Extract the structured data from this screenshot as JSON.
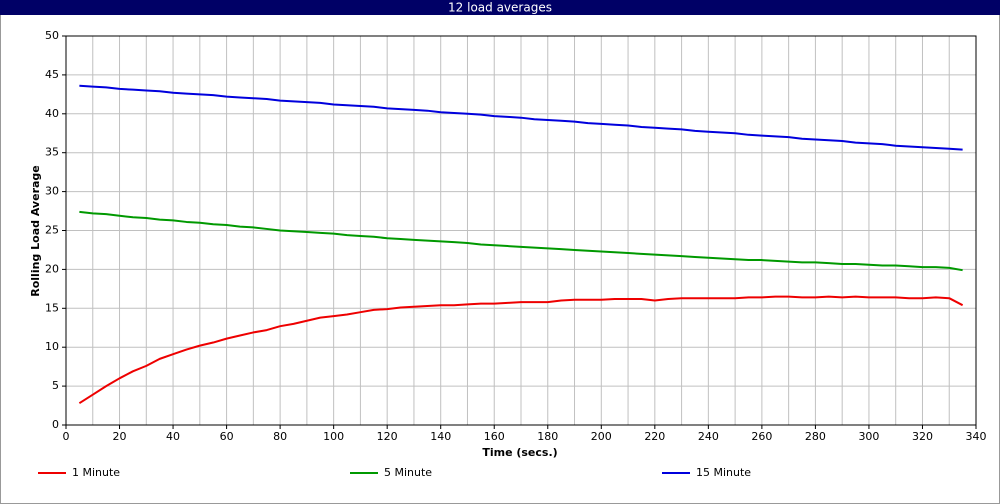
{
  "chart_data": {
    "type": "line",
    "title": "12 load averages",
    "x_label": "Time (secs.)",
    "y_label": "Rolling Load Average",
    "x": [
      5,
      10,
      15,
      20,
      25,
      30,
      35,
      40,
      45,
      50,
      55,
      60,
      65,
      70,
      75,
      80,
      85,
      90,
      95,
      100,
      105,
      110,
      115,
      120,
      125,
      130,
      135,
      140,
      145,
      150,
      155,
      160,
      165,
      170,
      175,
      180,
      185,
      190,
      195,
      200,
      205,
      210,
      215,
      220,
      225,
      230,
      235,
      240,
      245,
      250,
      255,
      260,
      265,
      270,
      275,
      280,
      285,
      290,
      295,
      300,
      305,
      310,
      315,
      320,
      325,
      330,
      335
    ],
    "series": [
      {
        "name": "1 Minute",
        "color": "#ee0000",
        "values": [
          2.8,
          3.9,
          5.0,
          6.0,
          6.9,
          7.6,
          8.5,
          9.1,
          9.7,
          10.2,
          10.6,
          11.1,
          11.5,
          11.9,
          12.2,
          12.7,
          13.0,
          13.4,
          13.8,
          14.0,
          14.2,
          14.5,
          14.8,
          14.9,
          15.1,
          15.2,
          15.3,
          15.4,
          15.4,
          15.5,
          15.6,
          15.6,
          15.7,
          15.8,
          15.8,
          15.8,
          16.0,
          16.1,
          16.1,
          16.1,
          16.2,
          16.2,
          16.2,
          16.0,
          16.2,
          16.3,
          16.3,
          16.3,
          16.3,
          16.3,
          16.4,
          16.4,
          16.5,
          16.5,
          16.4,
          16.4,
          16.5,
          16.4,
          16.5,
          16.4,
          16.4,
          16.4,
          16.3,
          16.3,
          16.4,
          16.3,
          15.4
        ]
      },
      {
        "name": "5 Minute",
        "color": "#009900",
        "values": [
          27.4,
          27.2,
          27.1,
          26.9,
          26.7,
          26.6,
          26.4,
          26.3,
          26.1,
          26.0,
          25.8,
          25.7,
          25.5,
          25.4,
          25.2,
          25.0,
          24.9,
          24.8,
          24.7,
          24.6,
          24.4,
          24.3,
          24.2,
          24.0,
          23.9,
          23.8,
          23.7,
          23.6,
          23.5,
          23.4,
          23.2,
          23.1,
          23.0,
          22.9,
          22.8,
          22.7,
          22.6,
          22.5,
          22.4,
          22.3,
          22.2,
          22.1,
          22.0,
          21.9,
          21.8,
          21.7,
          21.6,
          21.5,
          21.4,
          21.3,
          21.2,
          21.2,
          21.1,
          21.0,
          20.9,
          20.9,
          20.8,
          20.7,
          20.7,
          20.6,
          20.5,
          20.5,
          20.4,
          20.3,
          20.3,
          20.2,
          19.9
        ]
      },
      {
        "name": "15 Minute",
        "color": "#0000dd",
        "values": [
          43.6,
          43.5,
          43.4,
          43.2,
          43.1,
          43.0,
          42.9,
          42.7,
          42.6,
          42.5,
          42.4,
          42.2,
          42.1,
          42.0,
          41.9,
          41.7,
          41.6,
          41.5,
          41.4,
          41.2,
          41.1,
          41.0,
          40.9,
          40.7,
          40.6,
          40.5,
          40.4,
          40.2,
          40.1,
          40.0,
          39.9,
          39.7,
          39.6,
          39.5,
          39.3,
          39.2,
          39.1,
          39.0,
          38.8,
          38.7,
          38.6,
          38.5,
          38.3,
          38.2,
          38.1,
          38.0,
          37.8,
          37.7,
          37.6,
          37.5,
          37.3,
          37.2,
          37.1,
          37.0,
          36.8,
          36.7,
          36.6,
          36.5,
          36.3,
          36.2,
          36.1,
          35.9,
          35.8,
          35.7,
          35.6,
          35.5,
          35.4
        ]
      }
    ],
    "xlim": [
      0,
      340
    ],
    "ylim": [
      0,
      50
    ],
    "xticks": [
      0,
      20,
      40,
      60,
      80,
      100,
      120,
      140,
      160,
      180,
      200,
      220,
      240,
      260,
      280,
      300,
      320,
      340
    ],
    "xgrid": [
      0,
      10,
      20,
      30,
      40,
      50,
      60,
      70,
      80,
      90,
      100,
      110,
      120,
      130,
      140,
      150,
      160,
      170,
      180,
      190,
      200,
      210,
      220,
      230,
      240,
      250,
      260,
      270,
      280,
      290,
      300,
      310,
      320,
      330,
      340
    ],
    "yticks": [
      0,
      5,
      10,
      15,
      20,
      25,
      30,
      35,
      40,
      45,
      50
    ],
    "grid": true,
    "legend": "bottom"
  }
}
